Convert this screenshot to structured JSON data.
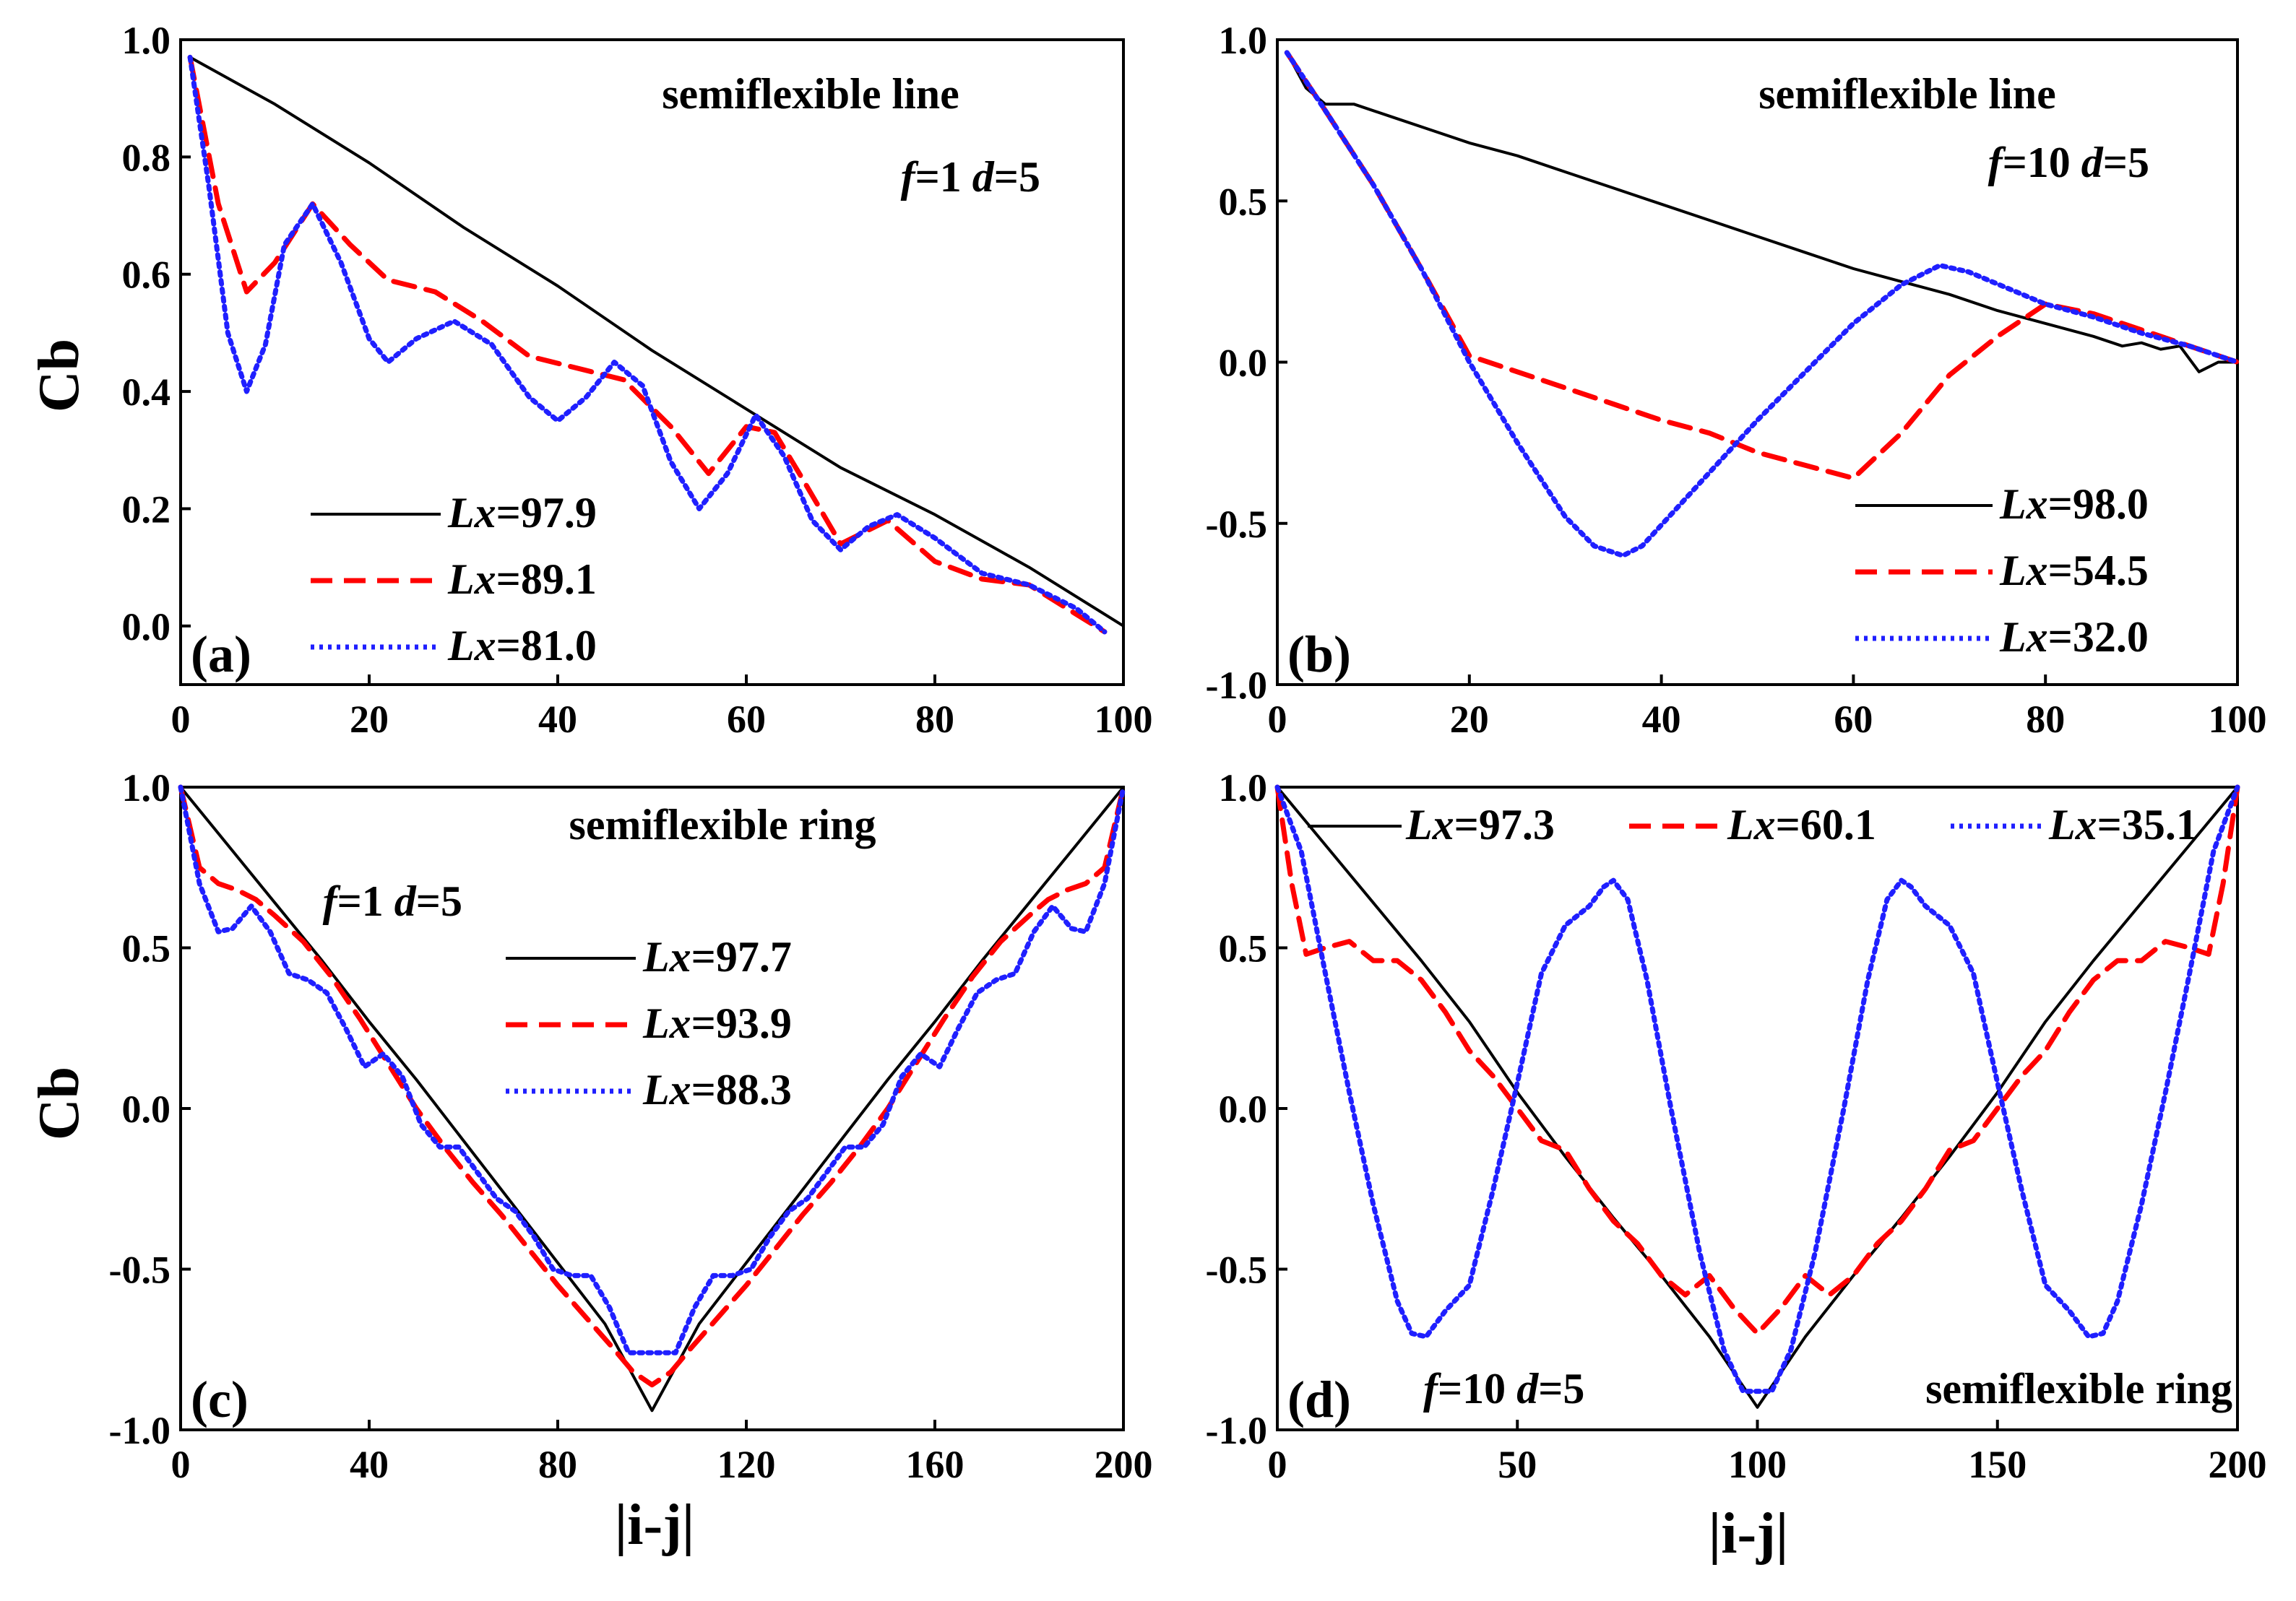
{
  "figure": {
    "ylabel_left_top": "Cb",
    "ylabel_left_bottom": "Cb",
    "xlabel_bottom_left": "|i-j|",
    "xlabel_bottom_right": "|i-j|"
  },
  "colors": {
    "black": "#000000",
    "red": "#ff0000",
    "blue": "#1f1fff"
  },
  "chart_data": [
    {
      "id": "a",
      "type": "line",
      "panel_label": "(a)",
      "title": "semiflexible line",
      "params": {
        "f": "1",
        "d": "5"
      },
      "xlim": [
        0,
        100
      ],
      "ylim": [
        -0.1,
        1.0
      ],
      "xticks": [
        "0",
        "20",
        "40",
        "60",
        "80",
        "100"
      ],
      "yticks": [
        "0.0",
        "0.2",
        "0.4",
        "0.6",
        "0.8",
        "1.0"
      ],
      "legend": {
        "position": "bottom-left",
        "entries": [
          "97.9",
          "89.1",
          "81.0"
        ]
      },
      "series": [
        {
          "name": "Lx=97.9",
          "value": "97.9",
          "style": "solid",
          "color": "#000000",
          "x": [
            1,
            10,
            20,
            30,
            40,
            50,
            60,
            70,
            80,
            90,
            100
          ],
          "y": [
            0.97,
            0.89,
            0.79,
            0.68,
            0.58,
            0.47,
            0.37,
            0.27,
            0.19,
            0.1,
            0.0
          ]
        },
        {
          "name": "Lx=89.1",
          "value": "89.1",
          "style": "dashed",
          "color": "#ff0000",
          "x": [
            1,
            4,
            7,
            10,
            14,
            18,
            22,
            27,
            32,
            37,
            42,
            47,
            52,
            56,
            60,
            63,
            66,
            70,
            75,
            80,
            85,
            90,
            95,
            98
          ],
          "y": [
            0.97,
            0.72,
            0.57,
            0.62,
            0.72,
            0.65,
            0.59,
            0.57,
            0.52,
            0.46,
            0.44,
            0.42,
            0.34,
            0.26,
            0.34,
            0.33,
            0.25,
            0.14,
            0.18,
            0.11,
            0.08,
            0.07,
            0.02,
            -0.01
          ]
        },
        {
          "name": "Lx=81.0",
          "value": "81.0",
          "style": "dotted",
          "color": "#1f1fff",
          "x": [
            1,
            3,
            5,
            7,
            9,
            11,
            14,
            17,
            20,
            22,
            25,
            29,
            33,
            37,
            40,
            43,
            46,
            49,
            52,
            55,
            58,
            61,
            64,
            67,
            70,
            73,
            76,
            80,
            85,
            90,
            95,
            98
          ],
          "y": [
            0.97,
            0.75,
            0.5,
            0.4,
            0.48,
            0.65,
            0.72,
            0.62,
            0.49,
            0.45,
            0.49,
            0.52,
            0.48,
            0.39,
            0.35,
            0.39,
            0.45,
            0.41,
            0.28,
            0.2,
            0.26,
            0.36,
            0.29,
            0.18,
            0.13,
            0.17,
            0.19,
            0.15,
            0.09,
            0.07,
            0.03,
            -0.01
          ]
        }
      ]
    },
    {
      "id": "b",
      "type": "line",
      "panel_label": "(b)",
      "title": "semiflexible line",
      "params": {
        "f": "10",
        "d": "5"
      },
      "xlim": [
        0,
        100
      ],
      "ylim": [
        -1.0,
        1.0
      ],
      "xticks": [
        "0",
        "20",
        "40",
        "60",
        "80",
        "100"
      ],
      "yticks": [
        "-1.0",
        "-0.5",
        "0.0",
        "0.5",
        "1.0"
      ],
      "legend": {
        "position": "bottom-right",
        "entries": [
          "98.0",
          "54.5",
          "32.0"
        ]
      },
      "series": [
        {
          "name": "Lx=98.0",
          "value": "98.0",
          "style": "solid",
          "color": "#000000",
          "x": [
            1,
            3,
            5,
            8,
            12,
            16,
            20,
            25,
            30,
            35,
            40,
            45,
            50,
            55,
            60,
            65,
            70,
            75,
            80,
            85,
            88,
            90,
            92,
            94,
            96,
            98,
            100
          ],
          "y": [
            0.96,
            0.85,
            0.8,
            0.8,
            0.76,
            0.72,
            0.68,
            0.64,
            0.59,
            0.54,
            0.49,
            0.44,
            0.39,
            0.34,
            0.29,
            0.25,
            0.21,
            0.16,
            0.12,
            0.08,
            0.05,
            0.06,
            0.04,
            0.05,
            -0.03,
            0.0,
            0.0
          ]
        },
        {
          "name": "Lx=54.5",
          "value": "54.5",
          "style": "dashed",
          "color": "#ff0000",
          "x": [
            1,
            5,
            10,
            15,
            20,
            25,
            30,
            35,
            40,
            45,
            50,
            55,
            60,
            65,
            70,
            75,
            80,
            85,
            90,
            95,
            100
          ],
          "y": [
            0.96,
            0.78,
            0.55,
            0.29,
            0.02,
            -0.03,
            -0.08,
            -0.13,
            -0.18,
            -0.22,
            -0.28,
            -0.32,
            -0.36,
            -0.22,
            -0.04,
            0.08,
            0.18,
            0.15,
            0.1,
            0.05,
            0.0
          ]
        },
        {
          "name": "Lx=32.0",
          "value": "32.0",
          "style": "dotted",
          "color": "#1f1fff",
          "x": [
            1,
            5,
            10,
            15,
            20,
            25,
            30,
            33,
            36,
            38,
            42,
            46,
            50,
            55,
            60,
            65,
            69,
            72,
            76,
            80,
            85,
            90,
            95,
            100
          ],
          "y": [
            0.96,
            0.78,
            0.55,
            0.29,
            0.0,
            -0.25,
            -0.48,
            -0.57,
            -0.6,
            -0.57,
            -0.44,
            -0.31,
            -0.18,
            -0.03,
            0.12,
            0.24,
            0.3,
            0.28,
            0.23,
            0.18,
            0.14,
            0.09,
            0.05,
            0.0
          ]
        }
      ]
    },
    {
      "id": "c",
      "type": "line",
      "panel_label": "(c)",
      "title": "semiflexible ring",
      "params": {
        "f": "1",
        "d": "5"
      },
      "xlim": [
        0,
        200
      ],
      "ylim": [
        -1.0,
        1.0
      ],
      "xticks": [
        "0",
        "40",
        "80",
        "120",
        "160",
        "200"
      ],
      "yticks": [
        "-1.0",
        "-0.5",
        "0.0",
        "0.5",
        "1.0"
      ],
      "legend": {
        "position": "top-right",
        "entries": [
          "97.7",
          "93.9",
          "88.3"
        ]
      },
      "series": [
        {
          "name": "Lx=97.7",
          "value": "97.7",
          "style": "solid",
          "color": "#000000",
          "x": [
            0,
            10,
            20,
            30,
            40,
            50,
            60,
            70,
            80,
            90,
            100,
            110,
            120,
            130,
            140,
            150,
            160,
            170,
            180,
            190,
            200
          ],
          "y": [
            1.0,
            0.82,
            0.64,
            0.46,
            0.27,
            0.09,
            -0.1,
            -0.29,
            -0.48,
            -0.67,
            -0.94,
            -0.67,
            -0.48,
            -0.29,
            -0.1,
            0.09,
            0.27,
            0.46,
            0.64,
            0.82,
            1.0
          ]
        },
        {
          "name": "Lx=93.9",
          "value": "93.9",
          "style": "dashed",
          "color": "#ff0000",
          "x": [
            0,
            4,
            8,
            12,
            16,
            20,
            26,
            32,
            38,
            44,
            50,
            56,
            62,
            68,
            74,
            80,
            86,
            92,
            96,
            100,
            104,
            108,
            114,
            120,
            126,
            132,
            138,
            144,
            150,
            156,
            162,
            168,
            174,
            180,
            184,
            188,
            192,
            196,
            200
          ],
          "y": [
            1.0,
            0.75,
            0.7,
            0.68,
            0.65,
            0.6,
            0.52,
            0.41,
            0.28,
            0.14,
            0.0,
            -0.12,
            -0.23,
            -0.33,
            -0.44,
            -0.55,
            -0.65,
            -0.75,
            -0.82,
            -0.86,
            -0.82,
            -0.75,
            -0.65,
            -0.55,
            -0.44,
            -0.33,
            -0.23,
            -0.12,
            0.0,
            0.14,
            0.28,
            0.41,
            0.52,
            0.6,
            0.65,
            0.68,
            0.7,
            0.75,
            1.0
          ]
        },
        {
          "name": "Lx=88.3",
          "value": "88.3",
          "style": "dotted",
          "color": "#1f1fff",
          "x": [
            0,
            4,
            8,
            11,
            15,
            19,
            23,
            27,
            31,
            35,
            39,
            43,
            47,
            51,
            55,
            59,
            63,
            67,
            71,
            75,
            79,
            83,
            87,
            91,
            95,
            100,
            105,
            109,
            113,
            117,
            121,
            125,
            129,
            133,
            137,
            141,
            145,
            149,
            153,
            157,
            161,
            165,
            169,
            173,
            177,
            181,
            185,
            189,
            192,
            196,
            200
          ],
          "y": [
            1.0,
            0.7,
            0.55,
            0.56,
            0.63,
            0.55,
            0.42,
            0.4,
            0.36,
            0.25,
            0.13,
            0.17,
            0.1,
            -0.05,
            -0.12,
            -0.12,
            -0.2,
            -0.28,
            -0.32,
            -0.4,
            -0.5,
            -0.52,
            -0.52,
            -0.62,
            -0.76,
            -0.76,
            -0.76,
            -0.62,
            -0.52,
            -0.52,
            -0.5,
            -0.4,
            -0.32,
            -0.28,
            -0.2,
            -0.12,
            -0.12,
            -0.05,
            0.1,
            0.17,
            0.13,
            0.25,
            0.36,
            0.4,
            0.42,
            0.55,
            0.63,
            0.56,
            0.55,
            0.7,
            1.0
          ]
        }
      ]
    },
    {
      "id": "d",
      "type": "line",
      "panel_label": "(d)",
      "title": "semiflexible ring",
      "params": {
        "f": "10",
        "d": "5"
      },
      "xlim": [
        0,
        200
      ],
      "ylim": [
        -1.0,
        1.0
      ],
      "xticks": [
        "0",
        "50",
        "100",
        "150",
        "200"
      ],
      "yticks": [
        "-1.0",
        "-0.5",
        "0.0",
        "0.5",
        "1.0"
      ],
      "legend": {
        "position": "top",
        "entries": [
          "97.3",
          "60.1",
          "35.1"
        ]
      },
      "series": [
        {
          "name": "Lx=97.3",
          "value": "97.3",
          "style": "solid",
          "color": "#000000",
          "x": [
            0,
            10,
            20,
            30,
            40,
            50,
            60,
            70,
            80,
            90,
            100,
            110,
            120,
            130,
            140,
            150,
            160,
            170,
            180,
            190,
            200
          ],
          "y": [
            1.0,
            0.82,
            0.64,
            0.46,
            0.27,
            0.05,
            -0.15,
            -0.34,
            -0.52,
            -0.71,
            -0.93,
            -0.71,
            -0.52,
            -0.34,
            -0.15,
            0.05,
            0.27,
            0.46,
            0.64,
            0.82,
            1.0
          ]
        },
        {
          "name": "Lx=60.1",
          "value": "60.1",
          "style": "dashed",
          "color": "#ff0000",
          "x": [
            0,
            3,
            6,
            10,
            15,
            20,
            25,
            30,
            35,
            40,
            45,
            50,
            55,
            60,
            65,
            70,
            75,
            80,
            85,
            90,
            95,
            100,
            105,
            110,
            115,
            120,
            125,
            130,
            135,
            140,
            145,
            150,
            155,
            160,
            165,
            170,
            175,
            180,
            185,
            190,
            194,
            197,
            200
          ],
          "y": [
            1.0,
            0.7,
            0.48,
            0.5,
            0.52,
            0.46,
            0.46,
            0.4,
            0.3,
            0.18,
            0.1,
            0.0,
            -0.1,
            -0.13,
            -0.25,
            -0.35,
            -0.42,
            -0.52,
            -0.58,
            -0.52,
            -0.62,
            -0.7,
            -0.62,
            -0.52,
            -0.58,
            -0.52,
            -0.42,
            -0.35,
            -0.25,
            -0.13,
            -0.1,
            0.0,
            0.1,
            0.18,
            0.3,
            0.4,
            0.46,
            0.46,
            0.52,
            0.5,
            0.48,
            0.7,
            1.0
          ]
        },
        {
          "name": "Lx=35.1",
          "value": "35.1",
          "style": "dotted",
          "color": "#1f1fff",
          "x": [
            0,
            5,
            10,
            15,
            20,
            25,
            28,
            31,
            35,
            40,
            45,
            50,
            55,
            60,
            65,
            68,
            70,
            73,
            77,
            82,
            88,
            93,
            97,
            100,
            103,
            107,
            112,
            118,
            123,
            127,
            130,
            132,
            135,
            140,
            145,
            150,
            155,
            160,
            165,
            169,
            172,
            175,
            180,
            185,
            190,
            195,
            200
          ],
          "y": [
            1.0,
            0.8,
            0.42,
            0.05,
            -0.3,
            -0.6,
            -0.7,
            -0.71,
            -0.63,
            -0.55,
            -0.25,
            0.08,
            0.42,
            0.57,
            0.63,
            0.69,
            0.71,
            0.65,
            0.4,
            0.0,
            -0.45,
            -0.75,
            -0.88,
            -0.88,
            -0.88,
            -0.75,
            -0.45,
            0.0,
            0.4,
            0.65,
            0.71,
            0.69,
            0.63,
            0.57,
            0.42,
            0.08,
            -0.25,
            -0.55,
            -0.63,
            -0.71,
            -0.7,
            -0.6,
            -0.3,
            0.05,
            0.42,
            0.8,
            1.0
          ]
        }
      ]
    }
  ]
}
